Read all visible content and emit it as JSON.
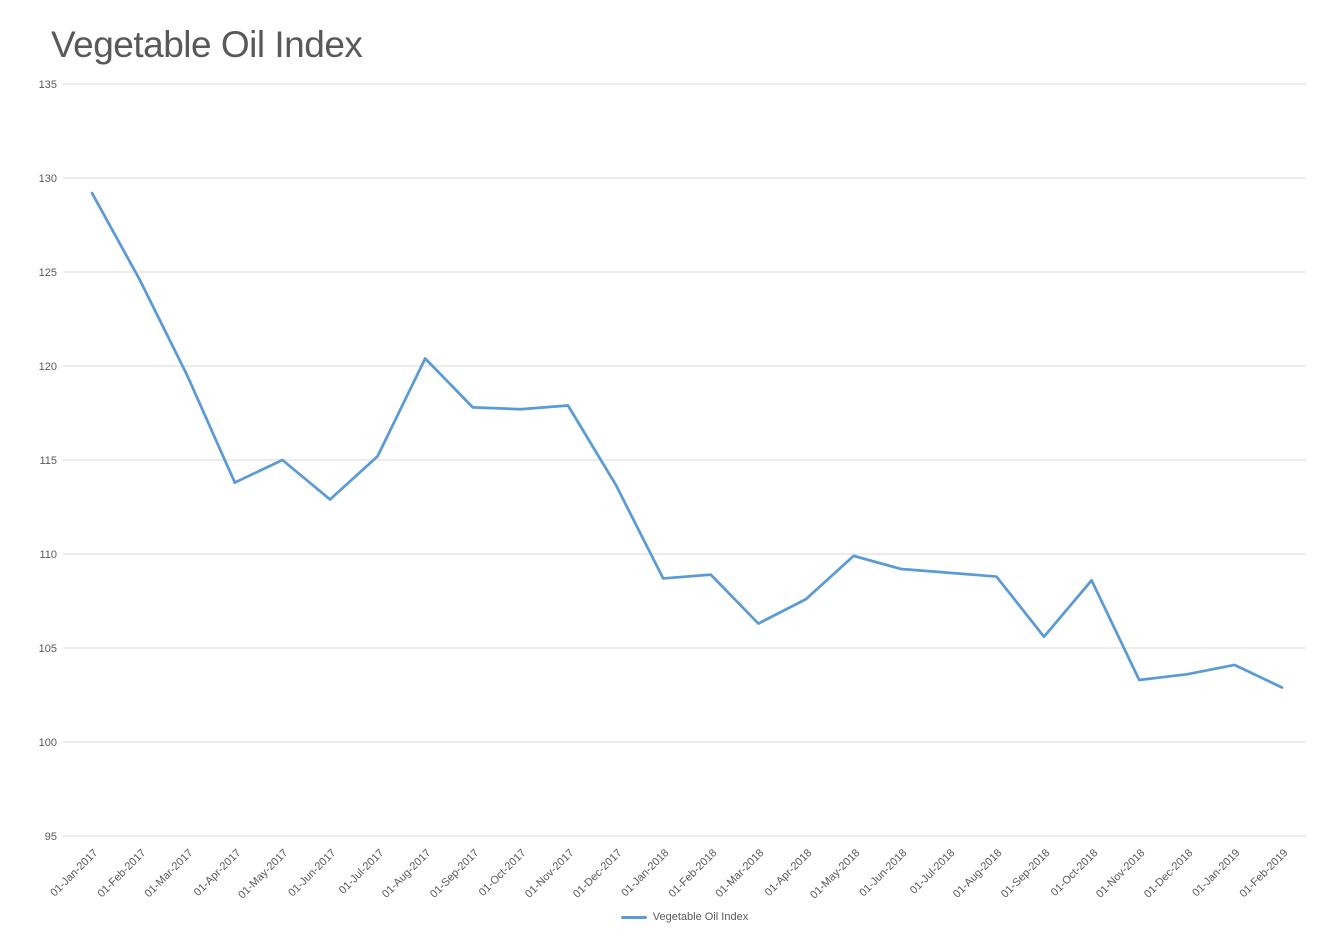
{
  "page": {
    "background": "#ffffff"
  },
  "chart_data": {
    "type": "line",
    "title": "Vegetable Oil Index",
    "title_color": "#595959",
    "label_color": "#595959",
    "gridline_color": "#d9d9d9",
    "grid": true,
    "categories": [
      "01-Jan-2017",
      "01-Feb-2017",
      "01-Mar-2017",
      "01-Apr-2017",
      "01-May-2017",
      "01-Jun-2017",
      "01-Jul-2017",
      "01-Aug-2017",
      "01-Sep-2017",
      "01-Oct-2017",
      "01-Nov-2017",
      "01-Dec-2017",
      "01-Jan-2018",
      "01-Feb-2018",
      "01-Mar-2018",
      "01-Apr-2018",
      "01-May-2018",
      "01-Jun-2018",
      "01-Jul-2018",
      "01-Aug-2018",
      "01-Sep-2018",
      "01-Oct-2018",
      "01-Nov-2018",
      "01-Dec-2018",
      "01-Jan-2019",
      "01-Feb-2019"
    ],
    "series": [
      {
        "name": "Vegetable Oil Index",
        "color": "#5b9bd5",
        "values": [
          129.2,
          124.6,
          119.5,
          113.8,
          115.0,
          112.9,
          115.2,
          120.4,
          117.8,
          117.7,
          117.9,
          113.7,
          108.7,
          108.9,
          106.3,
          107.6,
          109.9,
          109.2,
          109.0,
          108.8,
          105.6,
          108.6,
          103.3,
          103.6,
          104.1,
          102.9
        ]
      }
    ],
    "y_axis": {
      "min": 95,
      "max": 135,
      "step": 5,
      "ticks": [
        135,
        130,
        125,
        120,
        115,
        110,
        105,
        100,
        95
      ]
    },
    "x_axis": {
      "label_rotation_deg": 45
    },
    "xlabel": "",
    "ylabel": "",
    "legend": {
      "position": "bottom",
      "items": [
        {
          "label": "Vegetable Oil Index",
          "color": "#5b9bd5"
        }
      ]
    }
  }
}
